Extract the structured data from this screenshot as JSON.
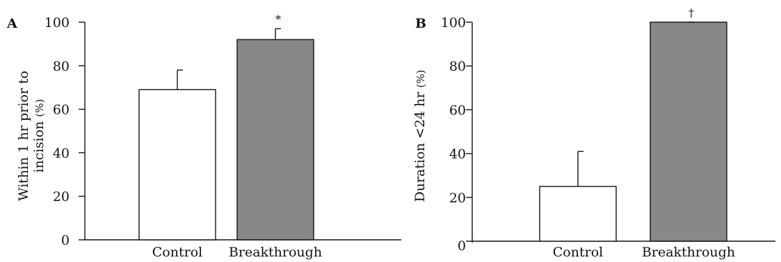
{
  "chart_data": [
    {
      "type": "bar",
      "panel_label": "A",
      "ylabel_line1": "Within 1 hr prior to",
      "ylabel_line2": "incision",
      "ylabel_unit": "(%)",
      "ylim": [
        0,
        100
      ],
      "yticks": [
        0,
        20,
        40,
        60,
        80,
        100
      ],
      "categories": [
        "Control",
        "Breakthrough"
      ],
      "values": [
        69,
        92
      ],
      "errors": [
        9,
        5
      ],
      "annotations": [
        "",
        "*"
      ],
      "colors": [
        "#ffffff",
        "#888888"
      ]
    },
    {
      "type": "bar",
      "panel_label": "B",
      "ylabel_line1": "Duration <24 hr",
      "ylabel_unit": "(%)",
      "ylim": [
        0,
        100
      ],
      "yticks": [
        0,
        20,
        40,
        60,
        80,
        100
      ],
      "categories": [
        "Control",
        "Breakthrough"
      ],
      "values": [
        25,
        100
      ],
      "errors": [
        16,
        0
      ],
      "annotations": [
        "",
        "†"
      ],
      "colors": [
        "#ffffff",
        "#888888"
      ]
    }
  ]
}
